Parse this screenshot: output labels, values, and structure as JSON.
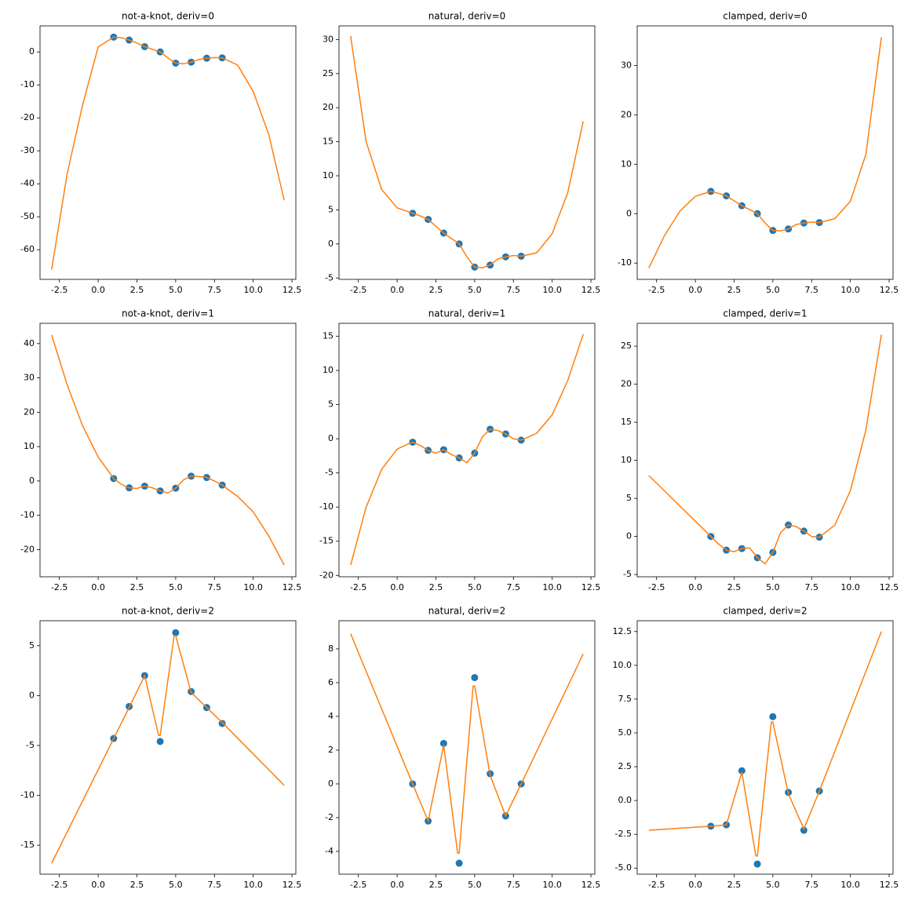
{
  "chart_data": [
    {
      "type": "line",
      "title": "not-a-knot, deriv=0",
      "xlim": [
        -3.75,
        12.75
      ],
      "ylim": [
        -69,
        7.9
      ],
      "xticks": [
        -2.5,
        {
          "value": 0,
          "label": "0.0"
        },
        2.5,
        {
          "value": 5,
          "label": "5.0"
        },
        7.5,
        {
          "value": 10,
          "label": "10.0"
        },
        12.5
      ],
      "yticks": [
        -60,
        -50,
        -40,
        -30,
        -20,
        -10,
        0
      ],
      "series": [
        {
          "type": "scatter",
          "color": "#1f77b4",
          "x": [
            1,
            2,
            3,
            4,
            5,
            6,
            7,
            8
          ],
          "values": [
            4.5,
            3.6,
            1.6,
            0,
            -3.4,
            -3.1,
            -1.9,
            -1.8
          ]
        },
        {
          "type": "line",
          "color": "#ff7f0e",
          "x": [
            -3,
            -2,
            -1,
            0,
            1,
            1.5,
            2,
            2.5,
            3,
            3.5,
            4,
            4.5,
            5,
            5.5,
            6,
            6.5,
            7,
            7.5,
            8,
            9,
            10,
            11,
            12
          ],
          "values": [
            -66,
            -37,
            -16,
            1.5,
            4.5,
            4.3,
            3.6,
            2.7,
            1.6,
            0.8,
            0,
            -1.8,
            -3.4,
            -3.6,
            -3.1,
            -2.3,
            -1.9,
            -1.7,
            -1.8,
            -4,
            -12,
            -25,
            -45
          ]
        }
      ]
    },
    {
      "type": "line",
      "title": "natural, deriv=0",
      "xlim": [
        -3.75,
        12.75
      ],
      "ylim": [
        -5.2,
        32
      ],
      "xticks": [
        -2.5,
        {
          "value": 0,
          "label": "0.0"
        },
        2.5,
        {
          "value": 5,
          "label": "5.0"
        },
        7.5,
        {
          "value": 10,
          "label": "10.0"
        },
        12.5
      ],
      "yticks": [
        -5,
        0,
        5,
        10,
        15,
        20,
        25,
        30
      ],
      "series": [
        {
          "type": "scatter",
          "color": "#1f77b4",
          "x": [
            1,
            2,
            3,
            4,
            5,
            6,
            7,
            8
          ],
          "values": [
            4.5,
            3.6,
            1.6,
            0,
            -3.4,
            -3.1,
            -1.9,
            -1.8
          ]
        },
        {
          "type": "line",
          "color": "#ff7f0e",
          "x": [
            -3,
            -2,
            -1,
            0,
            1,
            1.5,
            2,
            2.5,
            3,
            3.5,
            4,
            4.5,
            5,
            5.5,
            6,
            6.5,
            7,
            7.5,
            8,
            9,
            10,
            11,
            12
          ],
          "values": [
            30.5,
            15,
            8,
            5.3,
            4.5,
            4.1,
            3.6,
            2.6,
            1.6,
            0.8,
            0,
            -1.9,
            -3.4,
            -3.5,
            -3.1,
            -2.2,
            -1.9,
            -1.7,
            -1.8,
            -1.3,
            1.5,
            7.5,
            18
          ]
        }
      ]
    },
    {
      "type": "line",
      "title": "clamped, deriv=0",
      "xlim": [
        -3.75,
        12.75
      ],
      "ylim": [
        -13.3,
        38
      ],
      "xticks": [
        -2.5,
        {
          "value": 0,
          "label": "0.0"
        },
        2.5,
        {
          "value": 5,
          "label": "5.0"
        },
        7.5,
        {
          "value": 10,
          "label": "10.0"
        },
        12.5
      ],
      "yticks": [
        -10,
        0,
        10,
        20,
        30
      ],
      "series": [
        {
          "type": "scatter",
          "color": "#1f77b4",
          "x": [
            1,
            2,
            3,
            4,
            5,
            6,
            7,
            8
          ],
          "values": [
            4.5,
            3.6,
            1.6,
            0,
            -3.4,
            -3.1,
            -1.9,
            -1.8
          ]
        },
        {
          "type": "line",
          "color": "#ff7f0e",
          "x": [
            -3,
            -2,
            -1,
            0,
            1,
            1.5,
            2,
            2.5,
            3,
            3.5,
            4,
            4.5,
            5,
            5.5,
            6,
            6.5,
            7,
            7.5,
            8,
            9,
            10,
            11,
            12
          ],
          "values": [
            -11,
            -4.5,
            0.5,
            3.5,
            4.5,
            4.1,
            3.6,
            2.6,
            1.6,
            0.8,
            0,
            -1.9,
            -3.4,
            -3.5,
            -3.1,
            -2.2,
            -1.9,
            -1.7,
            -1.8,
            -1,
            2.5,
            12,
            35.7
          ]
        }
      ]
    },
    {
      "type": "line",
      "title": "not-a-knot, deriv=1",
      "xlim": [
        -3.75,
        12.75
      ],
      "ylim": [
        -27.9,
        45.9
      ],
      "xticks": [
        -2.5,
        {
          "value": 0,
          "label": "0.0"
        },
        2.5,
        {
          "value": 5,
          "label": "5.0"
        },
        7.5,
        {
          "value": 10,
          "label": "10.0"
        },
        12.5
      ],
      "yticks": [
        -20,
        -10,
        0,
        10,
        20,
        30,
        40
      ],
      "series": [
        {
          "type": "scatter",
          "color": "#1f77b4",
          "x": [
            1,
            2,
            3,
            4,
            5,
            6,
            7,
            8
          ],
          "values": [
            0.7,
            -2.0,
            -1.5,
            -2.9,
            -2.1,
            1.4,
            1.0,
            -1.2
          ]
        },
        {
          "type": "line",
          "color": "#ff7f0e",
          "x": [
            -3,
            -2,
            -1,
            0,
            1,
            1.5,
            2,
            2.5,
            3,
            3.5,
            4,
            4.5,
            5,
            5.5,
            6,
            6.5,
            7,
            7.5,
            8,
            9,
            10,
            11,
            12
          ],
          "values": [
            42.5,
            28,
            16,
            7,
            0.7,
            -1,
            -2,
            -2.2,
            -1.5,
            -2,
            -2.9,
            -3.5,
            -2.1,
            0.3,
            1.4,
            1.3,
            1,
            0,
            -1.2,
            -4.5,
            -9,
            -16,
            -24.5
          ]
        }
      ]
    },
    {
      "type": "line",
      "title": "natural, deriv=1",
      "xlim": [
        -3.75,
        12.75
      ],
      "ylim": [
        -20.2,
        16.9
      ],
      "xticks": [
        -2.5,
        {
          "value": 0,
          "label": "0.0"
        },
        2.5,
        {
          "value": 5,
          "label": "5.0"
        },
        7.5,
        {
          "value": 10,
          "label": "10.0"
        },
        12.5
      ],
      "yticks": [
        -20,
        -15,
        -10,
        -5,
        0,
        5,
        10,
        15
      ],
      "series": [
        {
          "type": "scatter",
          "color": "#1f77b4",
          "x": [
            1,
            2,
            3,
            4,
            5,
            6,
            7,
            8
          ],
          "values": [
            -0.5,
            -1.7,
            -1.6,
            -2.8,
            -2.1,
            1.4,
            0.7,
            -0.2
          ]
        },
        {
          "type": "line",
          "color": "#ff7f0e",
          "x": [
            -3,
            -2,
            -1,
            0,
            1,
            1.5,
            2,
            2.5,
            3,
            3.5,
            4,
            4.5,
            5,
            5.5,
            6,
            6.5,
            7,
            7.5,
            8,
            9,
            10,
            11,
            12
          ],
          "values": [
            -18.5,
            -10,
            -4.5,
            -1.5,
            -0.5,
            -1,
            -1.7,
            -2.1,
            -1.6,
            -2.3,
            -2.8,
            -3.5,
            -2.1,
            0.3,
            1.4,
            1.2,
            0.7,
            0,
            -0.2,
            0.8,
            3.5,
            8.5,
            15.3
          ]
        }
      ]
    },
    {
      "type": "line",
      "title": "clamped, deriv=1",
      "xlim": [
        -3.75,
        12.75
      ],
      "ylim": [
        -5.3,
        28
      ],
      "xticks": [
        -2.5,
        {
          "value": 0,
          "label": "0.0"
        },
        2.5,
        {
          "value": 5,
          "label": "5.0"
        },
        7.5,
        {
          "value": 10,
          "label": "10.0"
        },
        12.5
      ],
      "yticks": [
        -5,
        0,
        5,
        10,
        15,
        20,
        25
      ],
      "series": [
        {
          "type": "scatter",
          "color": "#1f77b4",
          "x": [
            1,
            2,
            3,
            4,
            5,
            6,
            7,
            8
          ],
          "values": [
            0.0,
            -1.8,
            -1.6,
            -2.8,
            -2.1,
            1.5,
            0.7,
            -0.1
          ]
        },
        {
          "type": "line",
          "color": "#ff7f0e",
          "x": [
            -3,
            -2,
            -1,
            0,
            1,
            1.5,
            2,
            2.5,
            3,
            3.5,
            4,
            4.5,
            5,
            5.5,
            6,
            6.5,
            7,
            7.5,
            8,
            9,
            10,
            11,
            12
          ],
          "values": [
            8,
            6,
            4,
            2,
            0,
            -1,
            -1.8,
            -2,
            -1.6,
            -1.5,
            -2.8,
            -3.6,
            -2.1,
            0.5,
            1.5,
            1.3,
            0.7,
            0,
            -0.1,
            1.5,
            6,
            14,
            26.5
          ]
        }
      ]
    },
    {
      "type": "line",
      "title": "not-a-knot, deriv=2",
      "xlim": [
        -3.75,
        12.75
      ],
      "ylim": [
        -17.9,
        7.5
      ],
      "xticks": [
        -2.5,
        {
          "value": 0,
          "label": "0.0"
        },
        2.5,
        {
          "value": 5,
          "label": "5.0"
        },
        7.5,
        {
          "value": 10,
          "label": "10.0"
        },
        12.5
      ],
      "yticks": [
        -15,
        -10,
        -5,
        0,
        5
      ],
      "series": [
        {
          "type": "scatter",
          "color": "#1f77b4",
          "x": [
            1,
            2,
            3,
            4,
            5,
            6,
            7,
            8
          ],
          "values": [
            -4.3,
            -1.1,
            2.0,
            -4.6,
            6.3,
            0.4,
            -1.2,
            -2.8
          ]
        },
        {
          "type": "line",
          "color": "#ff7f0e",
          "x": [
            -3,
            1,
            2,
            3,
            3.9,
            4,
            4.9,
            5,
            6,
            7,
            8,
            12
          ],
          "values": [
            -16.8,
            -4.3,
            -1.2,
            2.0,
            -4.0,
            -4.0,
            6.0,
            6.0,
            0.3,
            -1.2,
            -2.7,
            -9
          ]
        }
      ]
    },
    {
      "type": "line",
      "title": "natural, deriv=2",
      "xlim": [
        -3.75,
        12.75
      ],
      "ylim": [
        -5.35,
        9.67
      ],
      "xticks": [
        -2.5,
        {
          "value": 0,
          "label": "0.0"
        },
        2.5,
        {
          "value": 5,
          "label": "5.0"
        },
        7.5,
        {
          "value": 10,
          "label": "10.0"
        },
        12.5
      ],
      "yticks": [
        -4,
        -2,
        0,
        2,
        4,
        6,
        8
      ],
      "series": [
        {
          "type": "scatter",
          "color": "#1f77b4",
          "x": [
            1,
            2,
            3,
            4,
            5,
            6,
            7,
            8
          ],
          "values": [
            0.0,
            -2.2,
            2.4,
            -4.7,
            6.3,
            0.6,
            -1.9,
            0.0
          ]
        },
        {
          "type": "line",
          "color": "#ff7f0e",
          "x": [
            -3,
            1,
            2,
            3,
            3.9,
            4,
            4.9,
            5,
            6,
            7,
            8,
            12
          ],
          "values": [
            8.9,
            0,
            -2.2,
            2.3,
            -4.1,
            -4.1,
            5.8,
            5.8,
            0.5,
            -1.9,
            0,
            7.7
          ]
        }
      ]
    },
    {
      "type": "line",
      "title": "clamped, deriv=2",
      "xlim": [
        -3.75,
        12.75
      ],
      "ylim": [
        -5.45,
        13.3
      ],
      "xticks": [
        -2.5,
        {
          "value": 0,
          "label": "0.0"
        },
        2.5,
        {
          "value": 5,
          "label": "5.0"
        },
        7.5,
        {
          "value": 10,
          "label": "10.0"
        },
        12.5
      ],
      "yticks": [
        {
          "value": -5,
          "label": "-5.0"
        },
        -2.5,
        {
          "value": 0,
          "label": "0.0"
        },
        2.5,
        {
          "value": 5,
          "label": "5.0"
        },
        7.5,
        {
          "value": 10,
          "label": "10.0"
        },
        12.5
      ],
      "series": [
        {
          "type": "scatter",
          "color": "#1f77b4",
          "x": [
            1,
            2,
            3,
            4,
            5,
            6,
            7,
            8
          ],
          "values": [
            -1.9,
            -1.8,
            2.2,
            -4.7,
            6.2,
            0.6,
            -2.2,
            0.7
          ]
        },
        {
          "type": "line",
          "color": "#ff7f0e",
          "x": [
            -3,
            1,
            2,
            3,
            3.9,
            4,
            4.9,
            5,
            6,
            7,
            8,
            12
          ],
          "values": [
            -2.2,
            -1.9,
            -1.8,
            2.1,
            -4.1,
            -4.1,
            5.8,
            5.8,
            0.5,
            -2.1,
            0.7,
            12.5
          ]
        }
      ]
    }
  ]
}
